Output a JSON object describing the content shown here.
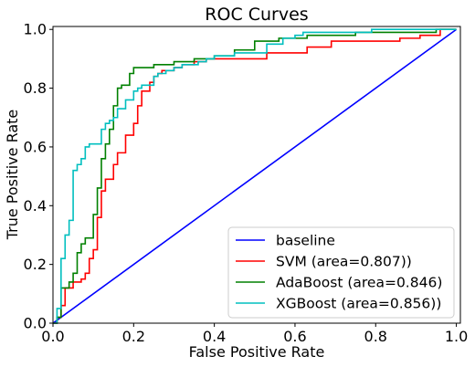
{
  "chart_data": {
    "type": "line",
    "title": "ROC Curves",
    "xlabel": "False Positive Rate",
    "ylabel": "True Positive Rate",
    "xlim": [
      0,
      1.01
    ],
    "ylim": [
      0,
      1.01
    ],
    "xticks": [
      0.0,
      0.2,
      0.4,
      0.6,
      0.8,
      1.0
    ],
    "yticks": [
      0.0,
      0.2,
      0.4,
      0.6,
      0.8,
      1.0
    ],
    "tick_labels_x": [
      "0.0",
      "0.2",
      "0.4",
      "0.6",
      "0.8",
      "1.0"
    ],
    "tick_labels_y": [
      "0.0",
      "0.2",
      "0.4",
      "0.6",
      "0.8",
      "1.0"
    ],
    "grid": false,
    "legend_position": "lower-right",
    "series": [
      {
        "name": "baseline",
        "color": "#0000ff",
        "points": [
          [
            0,
            0
          ],
          [
            1,
            1
          ]
        ]
      },
      {
        "name": "SVM (area=0.807))",
        "color": "#ff0000",
        "points": [
          [
            0,
            0
          ],
          [
            0.01,
            0
          ],
          [
            0.01,
            0.02
          ],
          [
            0.02,
            0.02
          ],
          [
            0.02,
            0.06
          ],
          [
            0.03,
            0.06
          ],
          [
            0.03,
            0.12
          ],
          [
            0.05,
            0.12
          ],
          [
            0.05,
            0.14
          ],
          [
            0.07,
            0.14
          ],
          [
            0.07,
            0.15
          ],
          [
            0.08,
            0.15
          ],
          [
            0.08,
            0.17
          ],
          [
            0.09,
            0.17
          ],
          [
            0.09,
            0.22
          ],
          [
            0.1,
            0.22
          ],
          [
            0.1,
            0.25
          ],
          [
            0.11,
            0.25
          ],
          [
            0.11,
            0.36
          ],
          [
            0.12,
            0.36
          ],
          [
            0.12,
            0.45
          ],
          [
            0.13,
            0.45
          ],
          [
            0.13,
            0.49
          ],
          [
            0.15,
            0.49
          ],
          [
            0.15,
            0.54
          ],
          [
            0.16,
            0.54
          ],
          [
            0.16,
            0.58
          ],
          [
            0.18,
            0.58
          ],
          [
            0.18,
            0.64
          ],
          [
            0.2,
            0.64
          ],
          [
            0.2,
            0.68
          ],
          [
            0.21,
            0.68
          ],
          [
            0.21,
            0.74
          ],
          [
            0.22,
            0.74
          ],
          [
            0.22,
            0.79
          ],
          [
            0.24,
            0.79
          ],
          [
            0.24,
            0.82
          ],
          [
            0.25,
            0.82
          ],
          [
            0.25,
            0.84
          ],
          [
            0.26,
            0.84
          ],
          [
            0.26,
            0.85
          ],
          [
            0.27,
            0.85
          ],
          [
            0.27,
            0.86
          ],
          [
            0.3,
            0.86
          ],
          [
            0.3,
            0.87
          ],
          [
            0.32,
            0.87
          ],
          [
            0.32,
            0.88
          ],
          [
            0.35,
            0.88
          ],
          [
            0.35,
            0.89
          ],
          [
            0.38,
            0.89
          ],
          [
            0.38,
            0.9
          ],
          [
            0.53,
            0.9
          ],
          [
            0.53,
            0.92
          ],
          [
            0.63,
            0.92
          ],
          [
            0.63,
            0.94
          ],
          [
            0.69,
            0.94
          ],
          [
            0.69,
            0.96
          ],
          [
            0.86,
            0.96
          ],
          [
            0.86,
            0.97
          ],
          [
            0.91,
            0.97
          ],
          [
            0.91,
            0.98
          ],
          [
            0.96,
            0.98
          ],
          [
            0.96,
            1.0
          ],
          [
            1.0,
            1.0
          ]
        ]
      },
      {
        "name": "AdaBoost (area=0.846)",
        "color": "#008000",
        "points": [
          [
            0,
            0
          ],
          [
            0.01,
            0
          ],
          [
            0.01,
            0.02
          ],
          [
            0.02,
            0.02
          ],
          [
            0.02,
            0.12
          ],
          [
            0.04,
            0.12
          ],
          [
            0.04,
            0.14
          ],
          [
            0.05,
            0.14
          ],
          [
            0.05,
            0.17
          ],
          [
            0.06,
            0.17
          ],
          [
            0.06,
            0.24
          ],
          [
            0.07,
            0.24
          ],
          [
            0.07,
            0.27
          ],
          [
            0.08,
            0.27
          ],
          [
            0.08,
            0.29
          ],
          [
            0.1,
            0.29
          ],
          [
            0.1,
            0.37
          ],
          [
            0.11,
            0.37
          ],
          [
            0.11,
            0.46
          ],
          [
            0.12,
            0.46
          ],
          [
            0.12,
            0.56
          ],
          [
            0.13,
            0.56
          ],
          [
            0.13,
            0.61
          ],
          [
            0.14,
            0.61
          ],
          [
            0.14,
            0.66
          ],
          [
            0.15,
            0.66
          ],
          [
            0.15,
            0.74
          ],
          [
            0.16,
            0.74
          ],
          [
            0.16,
            0.8
          ],
          [
            0.17,
            0.8
          ],
          [
            0.17,
            0.81
          ],
          [
            0.19,
            0.81
          ],
          [
            0.19,
            0.85
          ],
          [
            0.2,
            0.85
          ],
          [
            0.2,
            0.87
          ],
          [
            0.25,
            0.87
          ],
          [
            0.25,
            0.88
          ],
          [
            0.3,
            0.88
          ],
          [
            0.3,
            0.89
          ],
          [
            0.35,
            0.89
          ],
          [
            0.35,
            0.9
          ],
          [
            0.4,
            0.9
          ],
          [
            0.4,
            0.91
          ],
          [
            0.45,
            0.91
          ],
          [
            0.45,
            0.93
          ],
          [
            0.5,
            0.93
          ],
          [
            0.5,
            0.96
          ],
          [
            0.56,
            0.96
          ],
          [
            0.56,
            0.97
          ],
          [
            0.63,
            0.97
          ],
          [
            0.63,
            0.98
          ],
          [
            0.75,
            0.98
          ],
          [
            0.75,
            0.99
          ],
          [
            0.95,
            0.99
          ],
          [
            0.95,
            1.0
          ],
          [
            1.0,
            1.0
          ]
        ]
      },
      {
        "name": "XGBoost (area=0.856))",
        "color": "#00bfbf",
        "points": [
          [
            0,
            0
          ],
          [
            0.01,
            0
          ],
          [
            0.01,
            0.05
          ],
          [
            0.02,
            0.05
          ],
          [
            0.02,
            0.22
          ],
          [
            0.03,
            0.22
          ],
          [
            0.03,
            0.3
          ],
          [
            0.04,
            0.3
          ],
          [
            0.04,
            0.35
          ],
          [
            0.05,
            0.35
          ],
          [
            0.05,
            0.5
          ],
          [
            0.05,
            0.52
          ],
          [
            0.06,
            0.52
          ],
          [
            0.06,
            0.54
          ],
          [
            0.07,
            0.54
          ],
          [
            0.07,
            0.56
          ],
          [
            0.08,
            0.56
          ],
          [
            0.08,
            0.6
          ],
          [
            0.09,
            0.6
          ],
          [
            0.09,
            0.61
          ],
          [
            0.12,
            0.61
          ],
          [
            0.12,
            0.66
          ],
          [
            0.13,
            0.66
          ],
          [
            0.13,
            0.68
          ],
          [
            0.14,
            0.68
          ],
          [
            0.14,
            0.69
          ],
          [
            0.15,
            0.69
          ],
          [
            0.15,
            0.7
          ],
          [
            0.16,
            0.7
          ],
          [
            0.16,
            0.73
          ],
          [
            0.18,
            0.73
          ],
          [
            0.18,
            0.76
          ],
          [
            0.2,
            0.76
          ],
          [
            0.2,
            0.79
          ],
          [
            0.21,
            0.79
          ],
          [
            0.21,
            0.8
          ],
          [
            0.22,
            0.8
          ],
          [
            0.22,
            0.81
          ],
          [
            0.25,
            0.81
          ],
          [
            0.25,
            0.84
          ],
          [
            0.26,
            0.84
          ],
          [
            0.26,
            0.85
          ],
          [
            0.28,
            0.85
          ],
          [
            0.28,
            0.86
          ],
          [
            0.3,
            0.86
          ],
          [
            0.3,
            0.87
          ],
          [
            0.32,
            0.87
          ],
          [
            0.32,
            0.88
          ],
          [
            0.36,
            0.88
          ],
          [
            0.36,
            0.89
          ],
          [
            0.38,
            0.89
          ],
          [
            0.38,
            0.9
          ],
          [
            0.4,
            0.9
          ],
          [
            0.4,
            0.91
          ],
          [
            0.45,
            0.91
          ],
          [
            0.45,
            0.92
          ],
          [
            0.53,
            0.92
          ],
          [
            0.53,
            0.95
          ],
          [
            0.57,
            0.95
          ],
          [
            0.57,
            0.97
          ],
          [
            0.6,
            0.97
          ],
          [
            0.6,
            0.98
          ],
          [
            0.62,
            0.98
          ],
          [
            0.62,
            0.99
          ],
          [
            0.79,
            0.99
          ],
          [
            0.79,
            1.0
          ],
          [
            1.0,
            1.0
          ]
        ]
      }
    ]
  }
}
